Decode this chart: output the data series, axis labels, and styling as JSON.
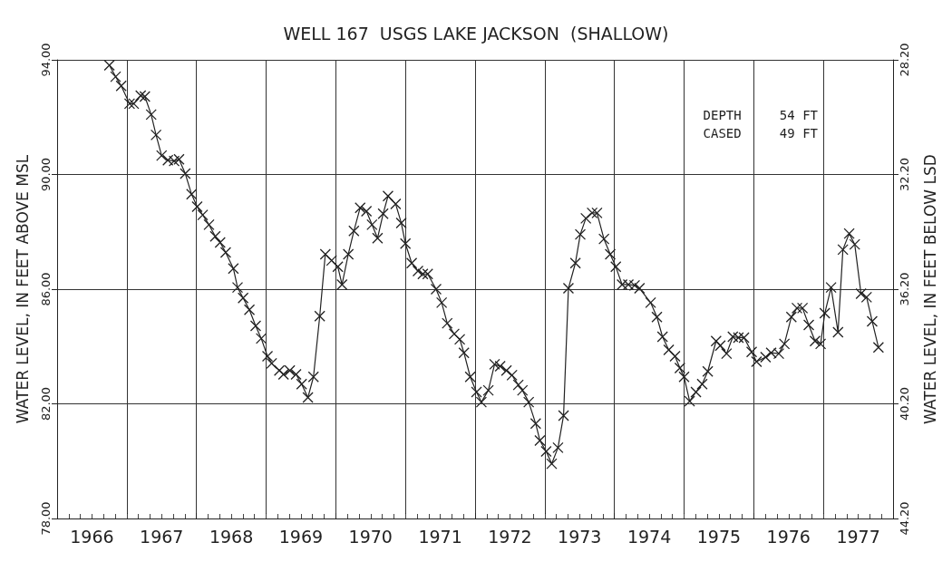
{
  "chart_data": {
    "type": "line",
    "title": "WELL 167  USGS LAKE JACKSON  (SHALLOW)",
    "ylabel": "WATER LEVEL, IN FEET ABOVE MSL",
    "y2label": "WATER LEVEL, IN FEET BELOW LSD",
    "annotations": [
      "DEPTH     54 FT",
      "CASED     49 FT"
    ],
    "xlim": [
      1966,
      1978
    ],
    "xticks": [
      {
        "value": 1966,
        "label": null
      },
      {
        "value": 1967,
        "label": null
      },
      {
        "value": 1968,
        "label": null
      },
      {
        "value": 1969,
        "label": null
      },
      {
        "value": 1970,
        "label": null
      },
      {
        "value": 1971,
        "label": null
      },
      {
        "value": 1972,
        "label": null
      },
      {
        "value": 1973,
        "label": null
      },
      {
        "value": 1974,
        "label": null
      },
      {
        "value": 1975,
        "label": null
      },
      {
        "value": 1976,
        "label": null
      },
      {
        "value": 1977,
        "label": null
      },
      {
        "value": 1978,
        "label": null
      },
      {
        "value": 1966.5,
        "label": "1966"
      },
      {
        "value": 1967.5,
        "label": "1967"
      },
      {
        "value": 1968.5,
        "label": "1968"
      },
      {
        "value": 1969.5,
        "label": "1969"
      },
      {
        "value": 1970.5,
        "label": "1970"
      },
      {
        "value": 1971.5,
        "label": "1971"
      },
      {
        "value": 1972.5,
        "label": "1972"
      },
      {
        "value": 1973.5,
        "label": "1973"
      },
      {
        "value": 1974.5,
        "label": "1974"
      },
      {
        "value": 1975.5,
        "label": "1975"
      },
      {
        "value": 1976.5,
        "label": "1976"
      },
      {
        "value": 1977.5,
        "label": "1977"
      }
    ],
    "ylim": [
      78,
      94
    ],
    "yticks": [
      {
        "value": 78,
        "label": "78.00"
      },
      {
        "value": 82,
        "label": "82.00"
      },
      {
        "value": 86,
        "label": "86.00"
      },
      {
        "value": 90,
        "label": "90.00"
      },
      {
        "value": 94,
        "label": "94.00"
      }
    ],
    "y2lim": [
      44.2,
      28.2
    ],
    "y2ticks": [
      {
        "value": 44.2,
        "label": "44.20"
      },
      {
        "value": 40.2,
        "label": "40.20"
      },
      {
        "value": 36.2,
        "label": "36.20"
      },
      {
        "value": 32.2,
        "label": "32.20"
      },
      {
        "value": 28.2,
        "label": "28.20"
      }
    ],
    "grid": true,
    "marker": "cross",
    "line_style": "solid",
    "series": [
      {
        "color": "#222222",
        "x": [
          1966.75,
          1966.84,
          1966.92,
          1967.04,
          1967.1,
          1967.2,
          1967.26,
          1967.35,
          1967.42,
          1967.5,
          1967.59,
          1967.68,
          1967.75,
          1967.84,
          1967.93,
          1968.01,
          1968.09,
          1968.18,
          1968.27,
          1968.34,
          1968.42,
          1968.53,
          1968.59,
          1968.67,
          1968.76,
          1968.85,
          1968.93,
          1969.02,
          1969.08,
          1969.19,
          1969.25,
          1969.34,
          1969.43,
          1969.51,
          1969.6,
          1969.68,
          1969.77,
          1969.85,
          1969.94,
          1970.03,
          1970.09,
          1970.18,
          1970.26,
          1970.35,
          1970.44,
          1970.52,
          1970.6,
          1970.68,
          1970.75,
          1970.86,
          1970.94,
          1971.0,
          1971.09,
          1971.18,
          1971.25,
          1971.32,
          1971.44,
          1971.52,
          1971.6,
          1971.7,
          1971.78,
          1971.84,
          1971.93,
          1972.02,
          1972.09,
          1972.19,
          1972.28,
          1972.36,
          1972.45,
          1972.53,
          1972.62,
          1972.68,
          1972.77,
          1972.87,
          1972.93,
          1973.02,
          1973.1,
          1973.19,
          1973.27,
          1973.34,
          1973.44,
          1973.51,
          1973.59,
          1973.68,
          1973.75,
          1973.85,
          1973.94,
          1974.02,
          1974.11,
          1974.2,
          1974.29,
          1974.36,
          1974.52,
          1974.61,
          1974.69,
          1974.78,
          1974.87,
          1974.94,
          1975.0,
          1975.08,
          1975.17,
          1975.26,
          1975.34,
          1975.46,
          1975.52,
          1975.61,
          1975.7,
          1975.78,
          1975.86,
          1975.97,
          1976.04,
          1976.17,
          1976.25,
          1976.36,
          1976.44,
          1976.54,
          1976.62,
          1976.7,
          1976.79,
          1976.88,
          1976.96,
          1977.02,
          1977.11,
          1977.21,
          1977.28,
          1977.37,
          1977.45,
          1977.54,
          1977.62,
          1977.7,
          1977.79
        ],
        "values": [
          93.81,
          93.41,
          93.09,
          92.47,
          92.47,
          92.75,
          92.72,
          92.09,
          91.38,
          90.66,
          90.5,
          90.47,
          90.53,
          90.03,
          89.31,
          88.88,
          88.59,
          88.25,
          87.84,
          87.63,
          87.28,
          86.72,
          86.06,
          85.69,
          85.28,
          84.72,
          84.28,
          83.66,
          83.41,
          83.16,
          83.03,
          83.16,
          83.03,
          82.69,
          82.22,
          82.94,
          85.06,
          87.22,
          87.0,
          86.78,
          86.16,
          87.22,
          88.03,
          88.84,
          88.72,
          88.25,
          87.78,
          88.63,
          89.25,
          88.97,
          88.31,
          87.59,
          86.91,
          86.63,
          86.53,
          86.53,
          86.0,
          85.53,
          84.81,
          84.44,
          84.25,
          83.78,
          82.94,
          82.41,
          82.06,
          82.47,
          83.38,
          83.31,
          83.16,
          83.0,
          82.66,
          82.47,
          82.06,
          81.31,
          80.72,
          80.34,
          79.91,
          80.47,
          81.59,
          86.03,
          86.91,
          87.91,
          88.47,
          88.66,
          88.66,
          87.75,
          87.22,
          86.78,
          86.16,
          86.16,
          86.13,
          86.03,
          85.53,
          85.03,
          84.34,
          83.88,
          83.66,
          83.25,
          82.94,
          82.09,
          82.41,
          82.69,
          83.13,
          84.19,
          84.03,
          83.75,
          84.34,
          84.31,
          84.31,
          83.81,
          83.47,
          83.63,
          83.78,
          83.75,
          84.09,
          85.03,
          85.34,
          85.34,
          84.75,
          84.19,
          84.09,
          85.16,
          86.06,
          84.5,
          87.38,
          87.94,
          87.56,
          85.84,
          85.72,
          84.88,
          83.97
        ]
      }
    ]
  }
}
